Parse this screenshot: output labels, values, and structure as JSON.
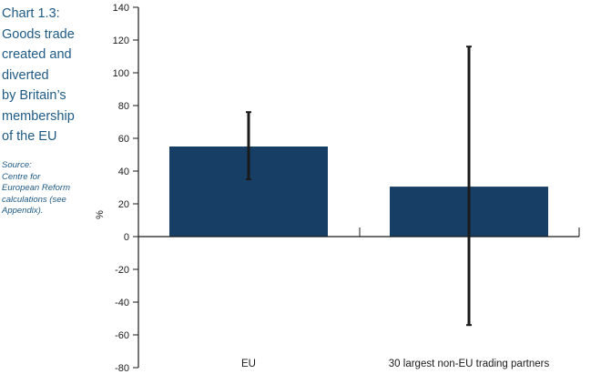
{
  "sidebar": {
    "title": "Chart 1.3:\nGoods trade\ncreated and\ndiverted\nby Britain’s\nmembership\nof the EU",
    "source": "Source:\nCentre for\nEuropean Reform\ncalculations (see\nAppendix)."
  },
  "colors": {
    "bar": "#173f66",
    "error_bar": "#1a1a1a",
    "axis": "#1a1a1a",
    "sidebar_text": "#1f5a84"
  },
  "chart_data": {
    "type": "bar",
    "categories": [
      "EU",
      "30 largest non-EU trading partners"
    ],
    "values": [
      55,
      30.5
    ],
    "error_bars": [
      {
        "low": 35,
        "high": 76
      },
      {
        "low": -54,
        "high": 116
      }
    ],
    "ylabel": "%",
    "ylim": [
      -80,
      140
    ],
    "yticks": [
      140,
      120,
      100,
      80,
      60,
      40,
      20,
      0,
      -20,
      -40,
      -60,
      -80
    ],
    "grid": false,
    "legend": false
  }
}
